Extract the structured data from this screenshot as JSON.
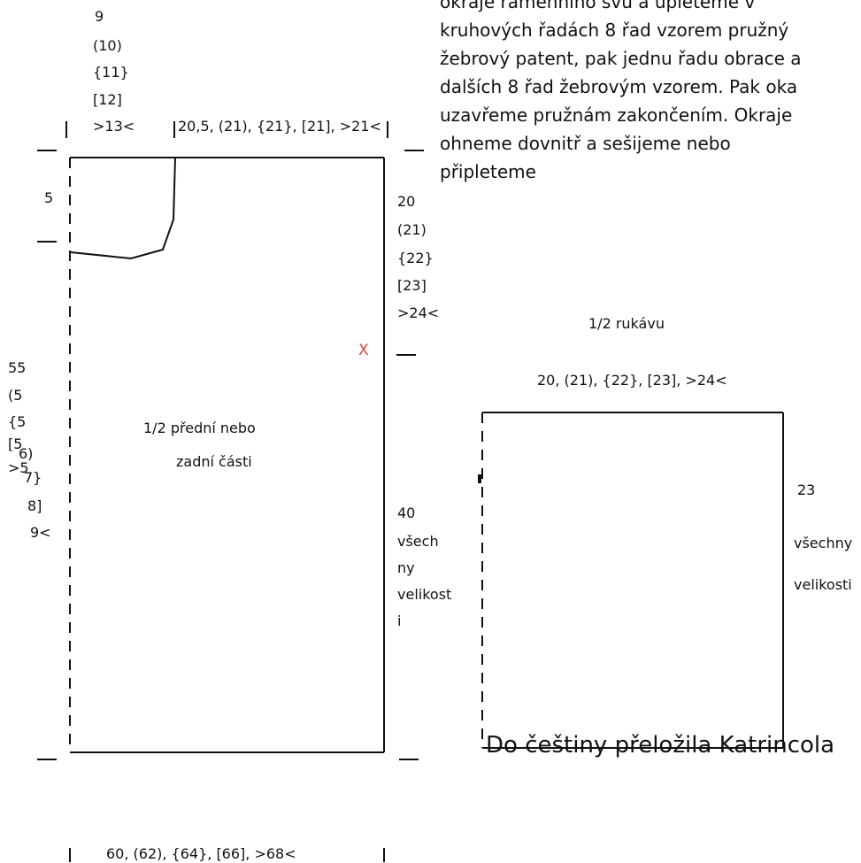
{
  "instructions": {
    "lines": [
      "okraje ramenního švu a upleteme v",
      "kruhových řadách 8 řad vzorem pružný",
      "žebrový patent, pak jednu řadu obrace a",
      "dalších 8 řad žebrovým vzorem. Pak oka",
      "uzavřeme pružnám zakončením. Okraje",
      "ohneme dovnitř a sešijeme nebo",
      "připleteme"
    ]
  },
  "body_piece": {
    "title_line1": "1/2 přední nebo",
    "title_line2": "zadní části",
    "neck_width": [
      "9",
      "(10)",
      "{11}",
      "[12]",
      ">13<"
    ],
    "shoulder_width": "20,5, (21), {21}, [21], >21<",
    "neck_depth": "5",
    "armhole_depth": [
      "20",
      "(21)",
      "{22}",
      "[23]",
      ">24<"
    ],
    "marker": "X",
    "side_length": [
      "40",
      "všech",
      "ny",
      "velikost",
      "i"
    ],
    "total_length": {
      "col1": [
        "55",
        "(5",
        "{5",
        "[5",
        ">5"
      ],
      "col2": [
        "6)",
        "7}",
        "8]",
        "9<"
      ]
    },
    "bottom_width": "60, (62), {64}, [66], >68<"
  },
  "sleeve": {
    "title": "1/2 rukávu",
    "width": "20, (21), {22}, [23], >24<",
    "length_value": "23",
    "length_note1": "všechny",
    "length_note2": "velikosti"
  },
  "translator": "Do češtiny přeložila Katrincola"
}
